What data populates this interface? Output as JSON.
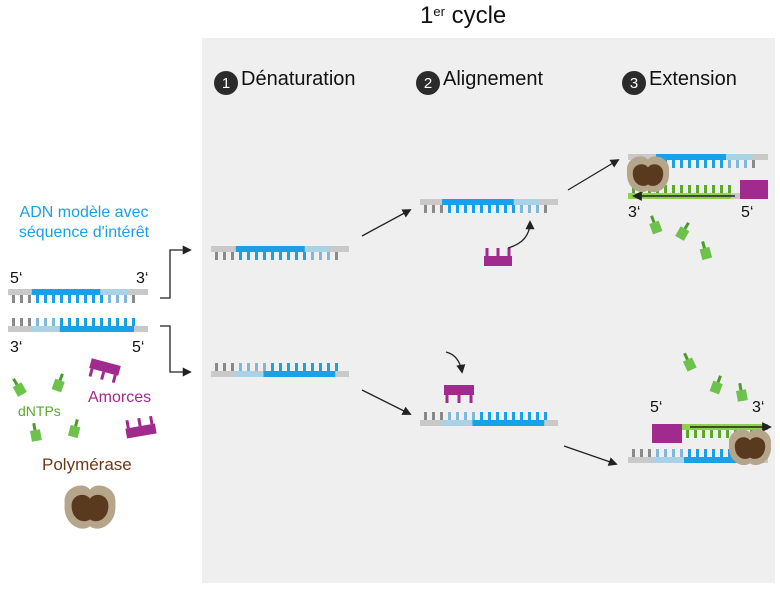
{
  "title": {
    "main": "1",
    "sup": "er",
    "rest": " cycle"
  },
  "steps": [
    {
      "number": "1",
      "label": "Dénaturation"
    },
    {
      "number": "2",
      "label": "Alignement"
    },
    {
      "number": "3",
      "label": "Extension"
    }
  ],
  "template_label": "ADN modèle avec séquence d'intérêt",
  "ends": {
    "five": "5‘",
    "three": "3‘"
  },
  "legend": {
    "dntps": "dNTPs",
    "primers": "Amorces",
    "polymerase": "Polymérase"
  },
  "colors": {
    "template_blue": "#1aa0e6",
    "light_blue": "#a9d2e6",
    "grey_backbone": "#c9c9c9",
    "grey_tooth": "#8a8a8a",
    "primer_magenta": "#a02a8e",
    "dntp_green": "#6cc24a",
    "new_strand_green": "#8fd14f",
    "polymerase_brown": "#5a3a1e",
    "polymerase_tan": "#b5a58a",
    "panel_bg": "#efefef"
  }
}
